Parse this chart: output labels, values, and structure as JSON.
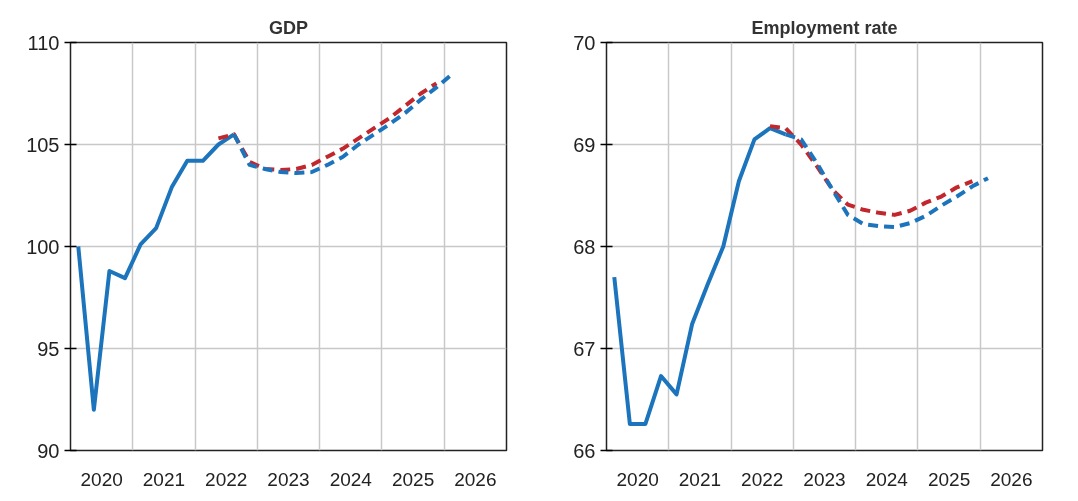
{
  "chart_data": [
    {
      "type": "line",
      "title": "GDP",
      "xlim": [
        2020,
        2027
      ],
      "ylim": [
        90,
        110
      ],
      "yticks": [
        90,
        95,
        100,
        105,
        110
      ],
      "xticks": [
        {
          "value": 2021,
          "label": null
        },
        {
          "value": 2022,
          "label": null
        },
        {
          "value": 2023,
          "label": null
        },
        {
          "value": 2024,
          "label": null
        },
        {
          "value": 2025,
          "label": null
        },
        {
          "value": 2026,
          "label": null
        },
        {
          "value": 2020.5,
          "label": "2020"
        },
        {
          "value": 2021.5,
          "label": "2021"
        },
        {
          "value": 2022.5,
          "label": "2022"
        },
        {
          "value": 2023.5,
          "label": "2023"
        },
        {
          "value": 2024.5,
          "label": "2024"
        },
        {
          "value": 2025.5,
          "label": "2025"
        },
        {
          "value": 2026.5,
          "label": "2026"
        }
      ],
      "grid": true,
      "series": [
        {
          "color": "#1c75bc",
          "line_style": "solid",
          "x": [
            2020.125,
            2020.375,
            2020.625,
            2020.875,
            2021.125,
            2021.375,
            2021.625,
            2021.875,
            2022.125,
            2022.375,
            2022.625
          ],
          "values": [
            100.0,
            92.0,
            98.8,
            98.45,
            100.1,
            100.9,
            102.9,
            104.2,
            104.2,
            105.0,
            105.5
          ]
        },
        {
          "color": "#c1272d",
          "line_style": "dashed",
          "x": [
            2022.375,
            2022.625,
            2022.875,
            2023.125,
            2023.375,
            2023.625,
            2023.875,
            2024.125,
            2024.375,
            2024.625,
            2024.875,
            2025.125,
            2025.375,
            2025.625,
            2025.875
          ],
          "values": [
            105.3,
            105.5,
            104.15,
            103.8,
            103.75,
            103.8,
            104.0,
            104.4,
            104.8,
            105.3,
            105.8,
            106.3,
            106.9,
            107.5,
            108.0
          ]
        },
        {
          "color": "#1c75bc",
          "line_style": "dashed",
          "x": [
            2022.625,
            2022.875,
            2023.125,
            2023.375,
            2023.625,
            2023.875,
            2024.125,
            2024.375,
            2024.625,
            2024.875,
            2025.125,
            2025.375,
            2025.625,
            2025.875,
            2026.125
          ],
          "values": [
            105.5,
            104.0,
            103.8,
            103.65,
            103.6,
            103.65,
            104.0,
            104.4,
            105.0,
            105.5,
            106.0,
            106.55,
            107.2,
            107.8,
            108.45
          ]
        }
      ]
    },
    {
      "type": "line",
      "title": "Employment rate",
      "xlim": [
        2020,
        2027
      ],
      "ylim": [
        66,
        70
      ],
      "yticks": [
        66,
        67,
        68,
        69,
        70
      ],
      "xticks": [
        {
          "value": 2021,
          "label": null
        },
        {
          "value": 2022,
          "label": null
        },
        {
          "value": 2023,
          "label": null
        },
        {
          "value": 2024,
          "label": null
        },
        {
          "value": 2025,
          "label": null
        },
        {
          "value": 2026,
          "label": null
        },
        {
          "value": 2020.5,
          "label": "2020"
        },
        {
          "value": 2021.5,
          "label": "2021"
        },
        {
          "value": 2022.5,
          "label": "2022"
        },
        {
          "value": 2023.5,
          "label": "2023"
        },
        {
          "value": 2024.5,
          "label": "2024"
        },
        {
          "value": 2025.5,
          "label": "2025"
        },
        {
          "value": 2026.5,
          "label": "2026"
        }
      ],
      "grid": true,
      "series": [
        {
          "color": "#1c75bc",
          "line_style": "solid",
          "x": [
            2020.125,
            2020.375,
            2020.625,
            2020.875,
            2021.125,
            2021.375,
            2021.625,
            2021.875,
            2022.125,
            2022.375,
            2022.625,
            2022.875
          ],
          "values": [
            67.7,
            66.26,
            66.26,
            66.73,
            66.55,
            67.24,
            67.63,
            68.0,
            68.64,
            69.05,
            69.16,
            69.1
          ]
        },
        {
          "color": "#c1272d",
          "line_style": "dashed",
          "x": [
            2022.625,
            2022.875,
            2023.125,
            2023.375,
            2023.625,
            2023.875,
            2024.125,
            2024.375,
            2024.625,
            2024.875,
            2025.125,
            2025.375,
            2025.625,
            2025.875
          ],
          "values": [
            69.18,
            69.16,
            69.0,
            68.79,
            68.56,
            68.41,
            68.36,
            68.33,
            68.31,
            68.35,
            68.43,
            68.49,
            68.58,
            68.64
          ]
        },
        {
          "color": "#1c75bc",
          "line_style": "dashed",
          "x": [
            2022.875,
            2023.125,
            2023.375,
            2023.625,
            2023.875,
            2024.125,
            2024.375,
            2024.625,
            2024.875,
            2025.125,
            2025.375,
            2025.625,
            2025.875,
            2026.125
          ],
          "values": [
            69.1,
            69.05,
            68.82,
            68.56,
            68.31,
            68.22,
            68.2,
            68.19,
            68.23,
            68.3,
            68.4,
            68.49,
            68.59,
            68.67
          ]
        }
      ]
    }
  ]
}
